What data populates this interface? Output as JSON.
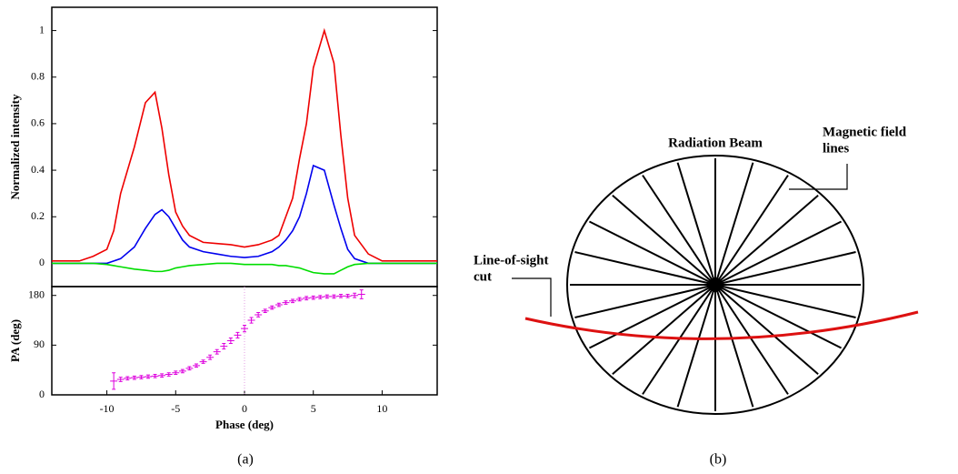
{
  "chart_data": [
    {
      "type": "line",
      "ylabel": "Normalized intensity",
      "x": [
        -14,
        -12,
        -11,
        -10,
        -9.5,
        -9,
        -8,
        -7.2,
        -6.5,
        -6,
        -5.5,
        -5,
        -4.5,
        -4,
        -3,
        -2,
        -1,
        0,
        1,
        2,
        2.5,
        3,
        3.5,
        4,
        4.5,
        5,
        5.8,
        6.5,
        7,
        7.5,
        8,
        9,
        10,
        14
      ],
      "series": [
        {
          "color": "#ee0000",
          "values": [
            0.01,
            0.01,
            0.03,
            0.06,
            0.14,
            0.3,
            0.5,
            0.69,
            0.735,
            0.58,
            0.38,
            0.22,
            0.16,
            0.12,
            0.09,
            0.085,
            0.08,
            0.07,
            0.08,
            0.1,
            0.12,
            0.2,
            0.28,
            0.45,
            0.6,
            0.84,
            1.0,
            0.86,
            0.55,
            0.28,
            0.12,
            0.04,
            0.01,
            0.01
          ]
        },
        {
          "color": "#0000ee",
          "values": [
            0,
            0,
            0,
            0,
            0.01,
            0.02,
            0.07,
            0.15,
            0.21,
            0.23,
            0.2,
            0.15,
            0.1,
            0.07,
            0.05,
            0.04,
            0.03,
            0.025,
            0.03,
            0.05,
            0.07,
            0.1,
            0.14,
            0.2,
            0.3,
            0.42,
            0.4,
            0.25,
            0.15,
            0.06,
            0.02,
            0,
            0,
            0
          ]
        },
        {
          "color": "#00dd00",
          "values": [
            0,
            0,
            0,
            -0.005,
            -0.01,
            -0.015,
            -0.025,
            -0.03,
            -0.035,
            -0.035,
            -0.03,
            -0.02,
            -0.015,
            -0.01,
            -0.005,
            0,
            0,
            -0.005,
            -0.005,
            -0.005,
            -0.01,
            -0.01,
            -0.015,
            -0.02,
            -0.03,
            -0.04,
            -0.045,
            -0.045,
            -0.03,
            -0.015,
            -0.005,
            0,
            0,
            0
          ]
        }
      ],
      "xlim": [
        -14,
        14
      ],
      "ylim": [
        -0.1,
        1.1
      ],
      "yticks": [
        0,
        0.2,
        0.4,
        0.6,
        0.8,
        1
      ]
    },
    {
      "type": "scatter",
      "xlabel": "Phase (deg)",
      "ylabel": "PA (deg)",
      "color": "#dd00dd",
      "x": [
        -9.5,
        -9,
        -8.5,
        -8,
        -7.5,
        -7,
        -6.5,
        -6,
        -5.5,
        -5,
        -4.5,
        -4,
        -3.5,
        -3,
        -2.5,
        -2,
        -1.5,
        -1,
        -0.5,
        0,
        0.5,
        1,
        1.5,
        2,
        2.5,
        3,
        3.5,
        4,
        4.5,
        5,
        5.5,
        6,
        6.5,
        7,
        7.5,
        8,
        8.5
      ],
      "values": [
        25,
        28,
        30,
        31,
        32,
        33,
        34,
        35,
        37,
        40,
        43,
        48,
        53,
        60,
        68,
        78,
        88,
        98,
        108,
        120,
        135,
        145,
        152,
        158,
        163,
        167,
        170,
        173,
        175,
        176,
        177,
        178,
        178,
        179,
        179,
        180,
        182
      ],
      "errors": [
        15,
        4,
        3,
        3,
        3,
        3,
        3,
        3,
        3,
        3,
        3,
        3,
        3,
        3,
        4,
        4,
        5,
        5,
        5,
        6,
        5,
        4,
        3,
        3,
        3,
        3,
        3,
        3,
        3,
        3,
        3,
        3,
        3,
        3,
        3,
        4,
        8
      ],
      "xlim": [
        -14,
        14
      ],
      "ylim": [
        0,
        196
      ],
      "xticks": [
        -10,
        -5,
        0,
        5,
        10
      ],
      "yticks": [
        0,
        90,
        180
      ]
    }
  ],
  "diagram": {
    "los": [
      "Line-of-sight",
      "cut"
    ],
    "beam": "Radiation Beam",
    "field": [
      "Magnetic field",
      "lines"
    ]
  },
  "captions": [
    "(a)",
    "(b)"
  ]
}
